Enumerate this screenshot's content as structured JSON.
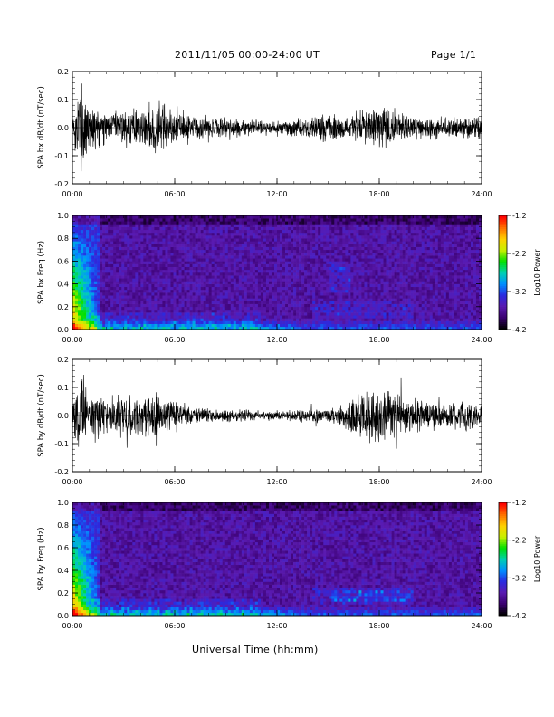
{
  "header": {
    "title": "2011/11/05  00:00-24:00 UT",
    "page": "Page 1/1"
  },
  "xaxis_title": "Universal Time (hh:mm)",
  "colors": {
    "trace": "#000000",
    "colormap": [
      "#000000",
      "#3a0070",
      "#5a1ab0",
      "#2a2ae0",
      "#0090ff",
      "#00d0b0",
      "#00e000",
      "#c8f000",
      "#ffd000",
      "#ff7000",
      "#ff0000"
    ]
  },
  "chart_data": [
    {
      "type": "line",
      "ylabel": "SPA bx dB/dt (nT/sec)",
      "xticks": [
        "00:00",
        "06:00",
        "12:00",
        "18:00",
        "24:00"
      ],
      "xlim": [
        0,
        24
      ],
      "ylim": [
        -0.2,
        0.2
      ],
      "yticks": [
        "-0.2",
        "-0.1",
        "0.0",
        "0.1",
        "0.2"
      ],
      "envelope": {
        "x": [
          0,
          0.5,
          1,
          2,
          3,
          4,
          5,
          6,
          7,
          8,
          9,
          10,
          11,
          12,
          13,
          14,
          15,
          16,
          17,
          18,
          19,
          20,
          21,
          22,
          23,
          24
        ],
        "y": [
          0.05,
          0.2,
          0.12,
          0.06,
          0.07,
          0.08,
          0.1,
          0.08,
          0.05,
          0.04,
          0.04,
          0.035,
          0.03,
          0.03,
          0.035,
          0.04,
          0.06,
          0.05,
          0.07,
          0.09,
          0.06,
          0.05,
          0.05,
          0.04,
          0.05,
          0.04
        ]
      }
    },
    {
      "type": "heatmap",
      "ylabel": "SPA bx Freq (Hz)",
      "xticks": [
        "00:00",
        "06:00",
        "12:00",
        "18:00",
        "24:00"
      ],
      "xlim": [
        0,
        24
      ],
      "ylim": [
        0,
        1.0
      ],
      "yticks": [
        "0.0",
        "0.2",
        "0.4",
        "0.6",
        "0.8",
        "1.0"
      ],
      "colorbar": {
        "label": "Log10 Power",
        "ticks": [
          "-1.2",
          "-2.2",
          "-3.2",
          "-4.2"
        ],
        "range": [
          -4.2,
          -1.2
        ]
      }
    },
    {
      "type": "line",
      "ylabel": "SPA by dB/dt (nT/sec)",
      "xticks": [
        "00:00",
        "06:00",
        "12:00",
        "18:00",
        "24:00"
      ],
      "xlim": [
        0,
        24
      ],
      "ylim": [
        -0.2,
        0.2
      ],
      "yticks": [
        "-0.2",
        "-0.1",
        "0.0",
        "0.1",
        "0.2"
      ],
      "envelope": {
        "x": [
          0,
          0.5,
          1,
          2,
          3,
          4,
          5,
          6,
          7,
          8,
          9,
          10,
          11,
          12,
          13,
          14,
          15,
          16,
          17,
          18,
          19,
          20,
          21,
          22,
          23,
          24
        ],
        "y": [
          0.06,
          0.2,
          0.12,
          0.08,
          0.09,
          0.08,
          0.1,
          0.06,
          0.03,
          0.03,
          0.025,
          0.025,
          0.02,
          0.02,
          0.025,
          0.03,
          0.03,
          0.05,
          0.1,
          0.11,
          0.09,
          0.07,
          0.06,
          0.05,
          0.06,
          0.04
        ]
      }
    },
    {
      "type": "heatmap",
      "ylabel": "SPA by Freq (Hz)",
      "xticks": [
        "00:00",
        "06:00",
        "12:00",
        "18:00",
        "24:00"
      ],
      "xlim": [
        0,
        24
      ],
      "ylim": [
        0,
        1.0
      ],
      "yticks": [
        "0.0",
        "0.2",
        "0.4",
        "0.6",
        "0.8",
        "1.0"
      ],
      "colorbar": {
        "label": "Log10 Power",
        "ticks": [
          "-1.2",
          "-2.2",
          "-3.2",
          "-4.2"
        ],
        "range": [
          -4.2,
          -1.2
        ]
      }
    }
  ]
}
